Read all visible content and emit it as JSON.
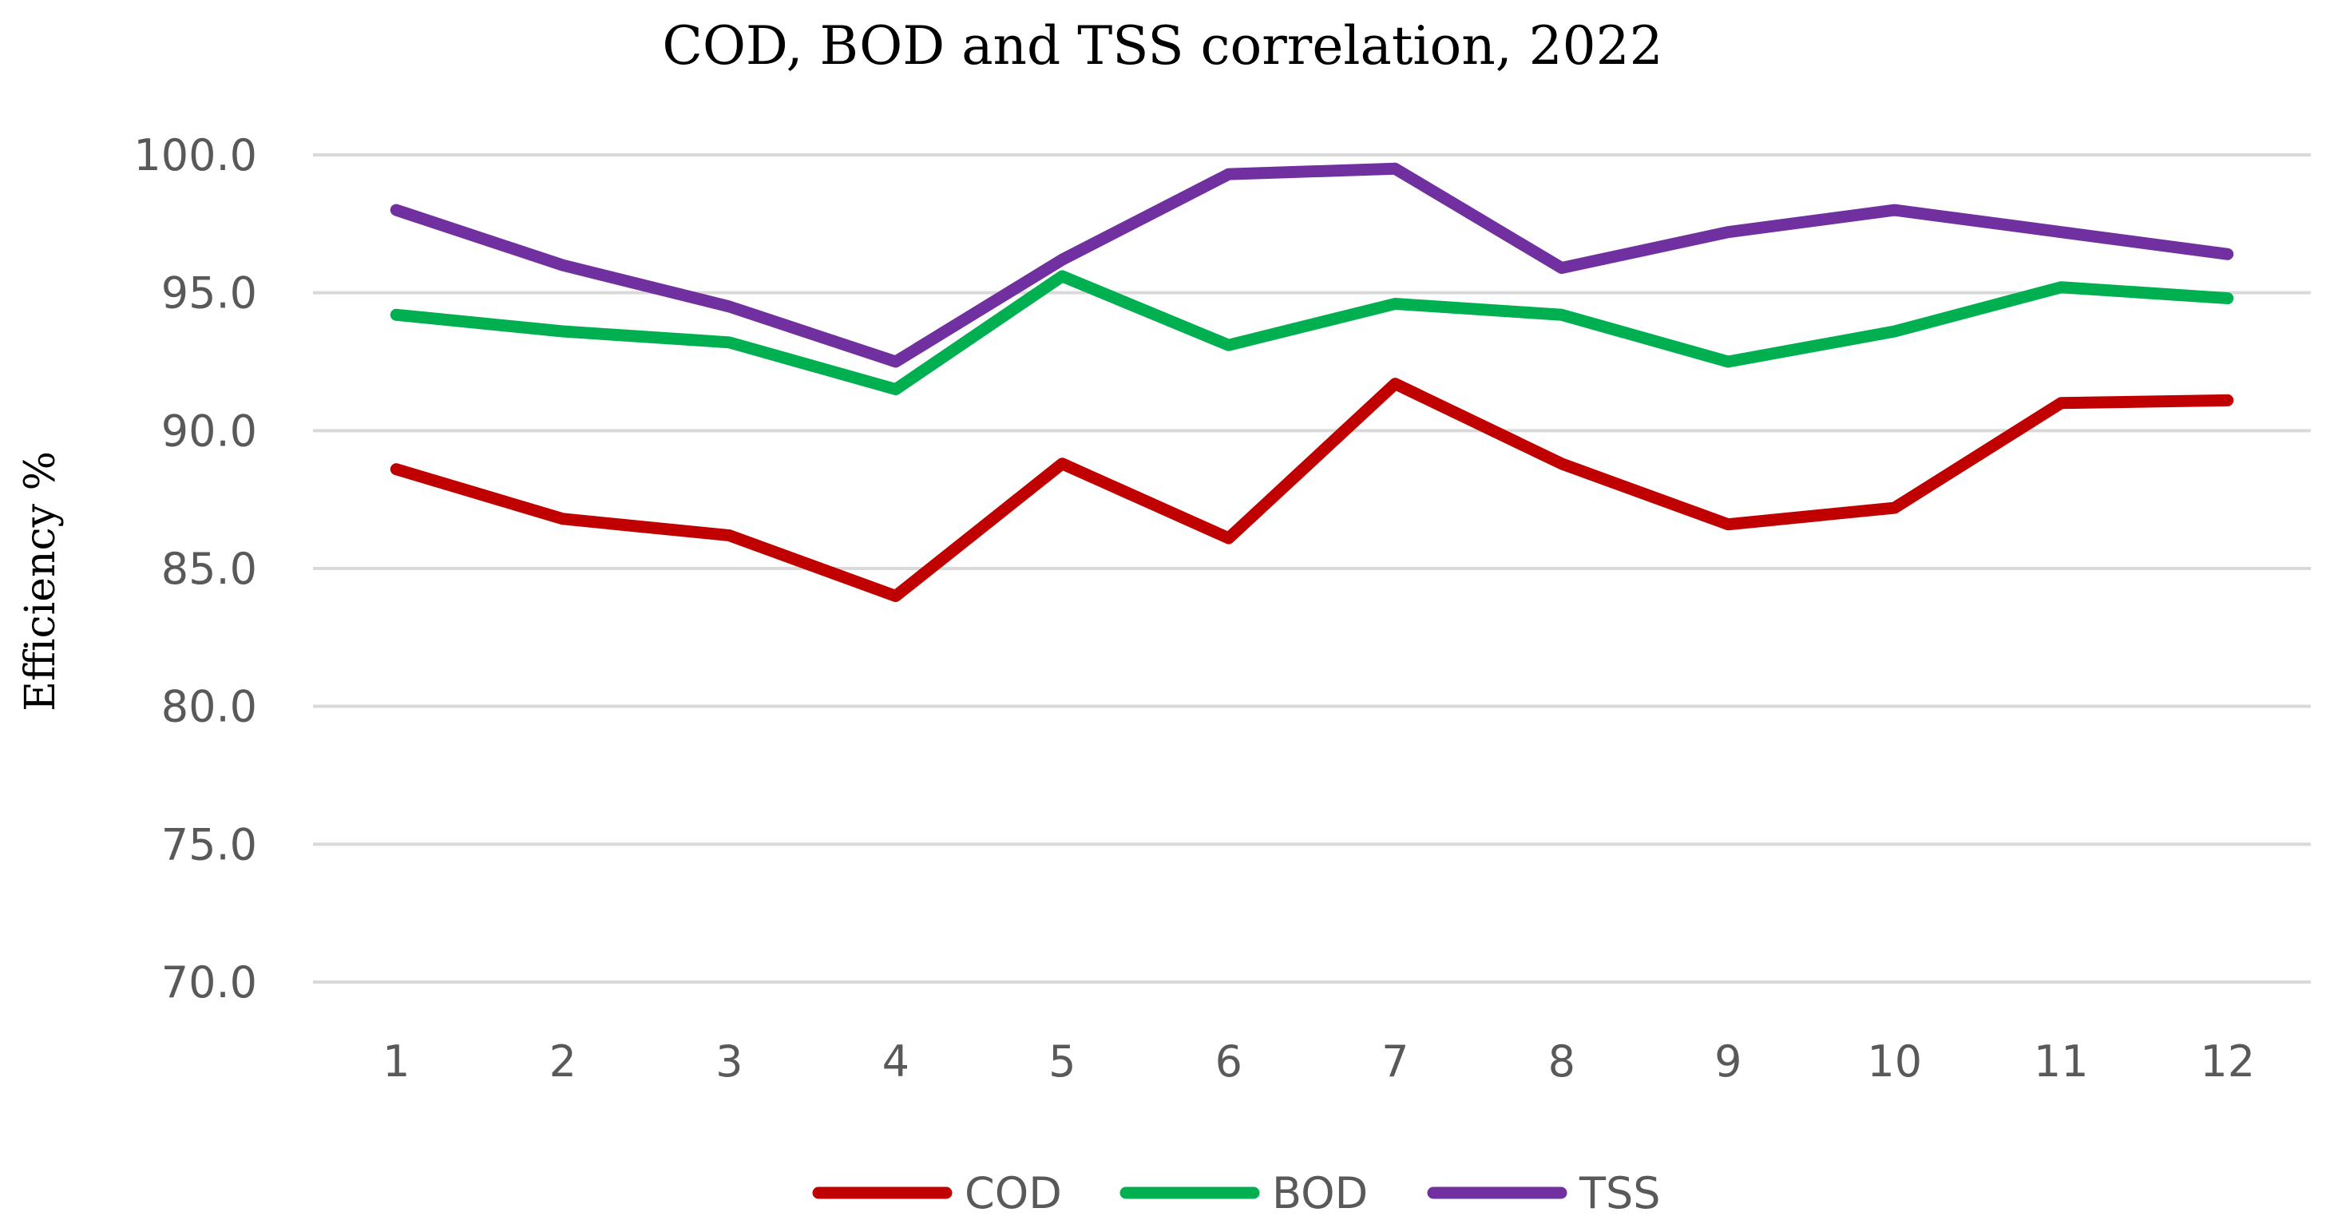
{
  "chart_data": {
    "type": "line",
    "title": "COD, BOD and TSS correlation, 2022",
    "xlabel": "",
    "ylabel": "Efficiency %",
    "categories": [
      "1",
      "2",
      "3",
      "4",
      "5",
      "6",
      "7",
      "8",
      "9",
      "10",
      "11",
      "12"
    ],
    "ylim": [
      70,
      100
    ],
    "yticks": [
      "70.0",
      "75.0",
      "80.0",
      "85.0",
      "90.0",
      "95.0",
      "100.0"
    ],
    "grid": true,
    "legend_position": "bottom",
    "series": [
      {
        "name": "COD",
        "color": "#C00000",
        "values": [
          88.6,
          86.8,
          86.2,
          84.0,
          88.8,
          86.1,
          91.7,
          88.8,
          86.6,
          87.2,
          91.0,
          91.1
        ]
      },
      {
        "name": "BOD",
        "color": "#00B050",
        "values": [
          94.2,
          93.6,
          93.2,
          91.5,
          95.6,
          93.1,
          94.6,
          94.2,
          92.5,
          93.6,
          95.2,
          94.8
        ]
      },
      {
        "name": "TSS",
        "color": "#7030A0",
        "values": [
          98.0,
          96.0,
          94.5,
          92.5,
          96.2,
          99.3,
          99.5,
          95.9,
          97.2,
          98.0,
          97.2,
          96.4
        ]
      }
    ]
  }
}
